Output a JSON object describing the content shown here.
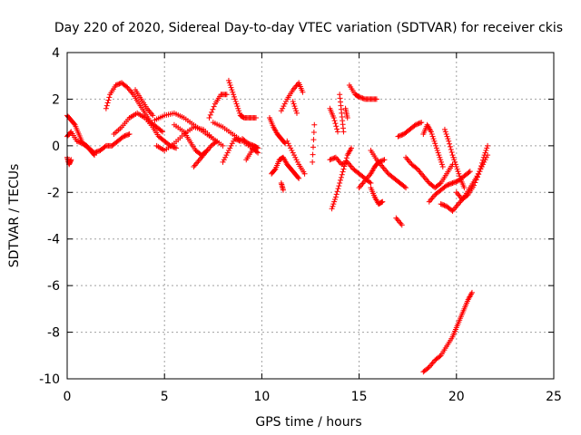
{
  "chart_data": {
    "type": "scatter",
    "title": "Day 220 of 2020, Sidereal Day-to-day VTEC variation (SDTVAR) for receiver ckis",
    "xlabel": "GPS time / hours",
    "ylabel": "SDTVAR / TECUs",
    "xlim": [
      0,
      25
    ],
    "ylim": [
      -10,
      4
    ],
    "xticks": [
      0,
      5,
      10,
      15,
      20,
      25
    ],
    "yticks": [
      -10,
      -8,
      -6,
      -4,
      -2,
      0,
      2,
      4
    ],
    "xtick_labels": [
      "0",
      "5",
      "10",
      "15",
      "20",
      "25"
    ],
    "ytick_labels": [
      "-10",
      "-8",
      "-6",
      "-4",
      "-2",
      "0",
      "2",
      "4"
    ],
    "grid": true,
    "marker": "+",
    "color": "#ff0000",
    "series": [
      {
        "name": "SDTVAR",
        "segments": [
          [
            [
              0.0,
              0.4
            ],
            [
              0.2,
              0.6
            ],
            [
              0.5,
              0.2
            ],
            [
              0.8,
              0.1
            ],
            [
              1.1,
              -0.1
            ],
            [
              1.4,
              -0.3
            ],
            [
              1.7,
              -0.2
            ],
            [
              2.0,
              0.0
            ],
            [
              2.3,
              0.0
            ],
            [
              2.6,
              0.2
            ],
            [
              2.9,
              0.4
            ],
            [
              3.2,
              0.5
            ]
          ],
          [
            [
              0.0,
              1.3
            ],
            [
              0.2,
              1.1
            ],
            [
              0.4,
              0.9
            ],
            [
              0.6,
              0.5
            ],
            [
              0.8,
              0.1
            ],
            [
              1.0,
              0.0
            ],
            [
              1.2,
              -0.2
            ],
            [
              1.4,
              -0.4
            ]
          ],
          [
            [
              0.0,
              -0.5
            ],
            [
              0.1,
              -0.8
            ],
            [
              0.2,
              -0.6
            ]
          ],
          [
            [
              2.0,
              1.6
            ],
            [
              2.2,
              2.2
            ],
            [
              2.5,
              2.6
            ],
            [
              2.8,
              2.7
            ],
            [
              3.1,
              2.5
            ],
            [
              3.4,
              2.2
            ],
            [
              3.7,
              1.8
            ],
            [
              4.0,
              1.4
            ],
            [
              4.3,
              1.0
            ],
            [
              4.6,
              0.8
            ],
            [
              4.9,
              0.6
            ]
          ],
          [
            [
              2.4,
              0.5
            ],
            [
              2.8,
              0.8
            ],
            [
              3.2,
              1.2
            ],
            [
              3.6,
              1.4
            ],
            [
              4.0,
              1.2
            ],
            [
              4.4,
              0.8
            ],
            [
              4.7,
              0.4
            ],
            [
              5.0,
              0.2
            ],
            [
              5.3,
              0.0
            ],
            [
              5.6,
              -0.1
            ]
          ],
          [
            [
              3.5,
              2.4
            ],
            [
              3.8,
              2.0
            ],
            [
              4.1,
              1.6
            ],
            [
              4.4,
              1.3
            ]
          ],
          [
            [
              4.5,
              1.1
            ],
            [
              5.0,
              1.3
            ],
            [
              5.5,
              1.4
            ],
            [
              6.0,
              1.2
            ],
            [
              6.5,
              0.9
            ],
            [
              7.0,
              0.6
            ],
            [
              7.5,
              0.3
            ],
            [
              8.0,
              0.0
            ]
          ],
          [
            [
              4.6,
              0.0
            ],
            [
              5.0,
              -0.2
            ],
            [
              5.5,
              0.1
            ],
            [
              6.0,
              0.5
            ],
            [
              6.5,
              0.8
            ],
            [
              7.0,
              0.7
            ],
            [
              7.5,
              0.3
            ]
          ],
          [
            [
              5.5,
              0.9
            ],
            [
              6.0,
              0.6
            ],
            [
              6.3,
              0.2
            ],
            [
              6.6,
              -0.2
            ],
            [
              6.9,
              -0.4
            ],
            [
              7.2,
              -0.2
            ]
          ],
          [
            [
              6.5,
              -0.9
            ],
            [
              6.8,
              -0.6
            ],
            [
              7.1,
              -0.3
            ],
            [
              7.4,
              0.0
            ],
            [
              7.7,
              0.2
            ]
          ],
          [
            [
              7.3,
              1.2
            ],
            [
              7.6,
              1.8
            ],
            [
              7.9,
              2.2
            ],
            [
              8.2,
              2.2
            ]
          ],
          [
            [
              7.5,
              1.0
            ],
            [
              8.0,
              0.8
            ],
            [
              8.5,
              0.5
            ],
            [
              9.0,
              0.2
            ],
            [
              9.5,
              -0.1
            ],
            [
              9.8,
              -0.3
            ]
          ],
          [
            [
              8.0,
              -0.7
            ],
            [
              8.3,
              -0.2
            ],
            [
              8.6,
              0.3
            ],
            [
              8.9,
              0.2
            ]
          ],
          [
            [
              8.3,
              2.8
            ],
            [
              8.5,
              2.3
            ],
            [
              8.7,
              1.8
            ],
            [
              8.9,
              1.3
            ],
            [
              9.1,
              1.2
            ],
            [
              9.4,
              1.2
            ],
            [
              9.7,
              1.2
            ]
          ],
          [
            [
              9.0,
              0.3
            ],
            [
              9.3,
              0.1
            ],
            [
              9.6,
              0.0
            ],
            [
              9.8,
              -0.1
            ]
          ],
          [
            [
              9.2,
              -0.6
            ],
            [
              9.5,
              -0.2
            ]
          ],
          [
            [
              10.4,
              1.2
            ],
            [
              10.6,
              0.8
            ],
            [
              10.8,
              0.5
            ],
            [
              11.0,
              0.3
            ],
            [
              11.2,
              0.1
            ]
          ],
          [
            [
              10.5,
              -1.2
            ],
            [
              10.7,
              -1.0
            ],
            [
              10.9,
              -0.6
            ],
            [
              11.1,
              -0.5
            ],
            [
              11.3,
              -0.8
            ],
            [
              11.5,
              -1.0
            ],
            [
              11.7,
              -1.2
            ],
            [
              11.9,
              -1.4
            ]
          ],
          [
            [
              11.0,
              1.5
            ],
            [
              11.3,
              2.0
            ],
            [
              11.6,
              2.4
            ],
            [
              11.9,
              2.7
            ],
            [
              12.1,
              2.3
            ]
          ],
          [
            [
              11.3,
              0.2
            ],
            [
              11.6,
              -0.3
            ],
            [
              11.9,
              -0.8
            ],
            [
              12.2,
              -1.2
            ]
          ],
          [
            [
              11.6,
              1.9
            ],
            [
              11.8,
              1.4
            ]
          ],
          [
            [
              11.1,
              -1.9
            ],
            [
              11.0,
              -1.6
            ]
          ],
          [
            [
              12.6,
              -0.7
            ],
            [
              12.7,
              0.9
            ]
          ],
          [
            [
              13.5,
              1.6
            ],
            [
              13.7,
              1.2
            ],
            [
              13.9,
              0.6
            ]
          ],
          [
            [
              13.5,
              -0.6
            ],
            [
              13.8,
              -0.5
            ],
            [
              14.1,
              -0.8
            ],
            [
              14.4,
              -0.7
            ],
            [
              14.7,
              -1.0
            ],
            [
              15.0,
              -1.2
            ],
            [
              15.3,
              -1.4
            ],
            [
              15.6,
              -1.6
            ]
          ],
          [
            [
              13.6,
              -2.7
            ],
            [
              13.8,
              -2.2
            ],
            [
              14.0,
              -1.6
            ],
            [
              14.2,
              -1.0
            ],
            [
              14.4,
              -0.4
            ],
            [
              14.6,
              -0.1
            ]
          ],
          [
            [
              14.0,
              2.2
            ],
            [
              14.1,
              1.4
            ],
            [
              14.2,
              0.6
            ]
          ],
          [
            [
              14.5,
              2.6
            ],
            [
              14.8,
              2.2
            ],
            [
              15.0,
              2.1
            ],
            [
              15.3,
              2.0
            ],
            [
              15.6,
              2.0
            ],
            [
              15.9,
              2.0
            ]
          ],
          [
            [
              14.3,
              1.6
            ],
            [
              14.4,
              1.2
            ]
          ],
          [
            [
              15.0,
              -1.8
            ],
            [
              15.3,
              -1.5
            ],
            [
              15.6,
              -1.2
            ],
            [
              15.8,
              -0.9
            ],
            [
              16.0,
              -0.7
            ],
            [
              16.3,
              -0.6
            ]
          ],
          [
            [
              15.6,
              -0.2
            ],
            [
              15.9,
              -0.6
            ],
            [
              16.2,
              -0.9
            ],
            [
              16.5,
              -1.2
            ],
            [
              16.8,
              -1.4
            ],
            [
              17.1,
              -1.6
            ],
            [
              17.4,
              -1.8
            ]
          ],
          [
            [
              15.6,
              -1.8
            ],
            [
              15.8,
              -2.2
            ],
            [
              16.0,
              -2.5
            ],
            [
              16.2,
              -2.4
            ]
          ],
          [
            [
              16.9,
              -3.1
            ],
            [
              17.2,
              -3.4
            ]
          ],
          [
            [
              17.0,
              0.4
            ],
            [
              17.3,
              0.5
            ],
            [
              17.6,
              0.7
            ],
            [
              17.9,
              0.9
            ],
            [
              18.2,
              1.0
            ]
          ],
          [
            [
              17.4,
              -0.5
            ],
            [
              17.7,
              -0.8
            ],
            [
              18.0,
              -1.0
            ],
            [
              18.3,
              -1.3
            ],
            [
              18.6,
              -1.6
            ],
            [
              18.9,
              -1.8
            ],
            [
              19.2,
              -1.6
            ],
            [
              19.5,
              -1.2
            ],
            [
              19.8,
              -0.8
            ]
          ],
          [
            [
              18.3,
              0.5
            ],
            [
              18.5,
              0.9
            ],
            [
              18.7,
              0.6
            ],
            [
              18.9,
              0.1
            ],
            [
              19.1,
              -0.4
            ],
            [
              19.3,
              -0.9
            ]
          ],
          [
            [
              18.6,
              -2.4
            ],
            [
              18.9,
              -2.1
            ],
            [
              19.2,
              -1.9
            ],
            [
              19.5,
              -1.7
            ],
            [
              19.8,
              -1.6
            ],
            [
              20.1,
              -1.5
            ],
            [
              20.4,
              -1.3
            ],
            [
              20.7,
              -1.1
            ]
          ],
          [
            [
              19.4,
              0.7
            ],
            [
              19.6,
              0.2
            ],
            [
              19.8,
              -0.4
            ],
            [
              20.0,
              -0.9
            ],
            [
              20.2,
              -1.4
            ],
            [
              20.4,
              -1.8
            ]
          ],
          [
            [
              19.2,
              -2.5
            ],
            [
              19.5,
              -2.6
            ],
            [
              19.8,
              -2.8
            ],
            [
              20.1,
              -2.5
            ],
            [
              20.4,
              -2.2
            ],
            [
              20.7,
              -1.8
            ],
            [
              21.0,
              -1.4
            ],
            [
              21.3,
              -0.9
            ],
            [
              21.6,
              -0.4
            ]
          ],
          [
            [
              20.0,
              -2.0
            ],
            [
              20.3,
              -2.3
            ],
            [
              20.6,
              -2.1
            ],
            [
              20.9,
              -1.7
            ],
            [
              21.2,
              -1.1
            ],
            [
              21.4,
              -0.5
            ],
            [
              21.6,
              0.0
            ]
          ],
          [
            [
              18.3,
              -9.7
            ],
            [
              18.6,
              -9.5
            ],
            [
              18.9,
              -9.2
            ],
            [
              19.2,
              -9.0
            ],
            [
              19.5,
              -8.6
            ],
            [
              19.8,
              -8.2
            ],
            [
              20.0,
              -7.8
            ],
            [
              20.2,
              -7.4
            ],
            [
              20.4,
              -7.0
            ],
            [
              20.6,
              -6.6
            ],
            [
              20.8,
              -6.3
            ]
          ]
        ]
      }
    ]
  }
}
